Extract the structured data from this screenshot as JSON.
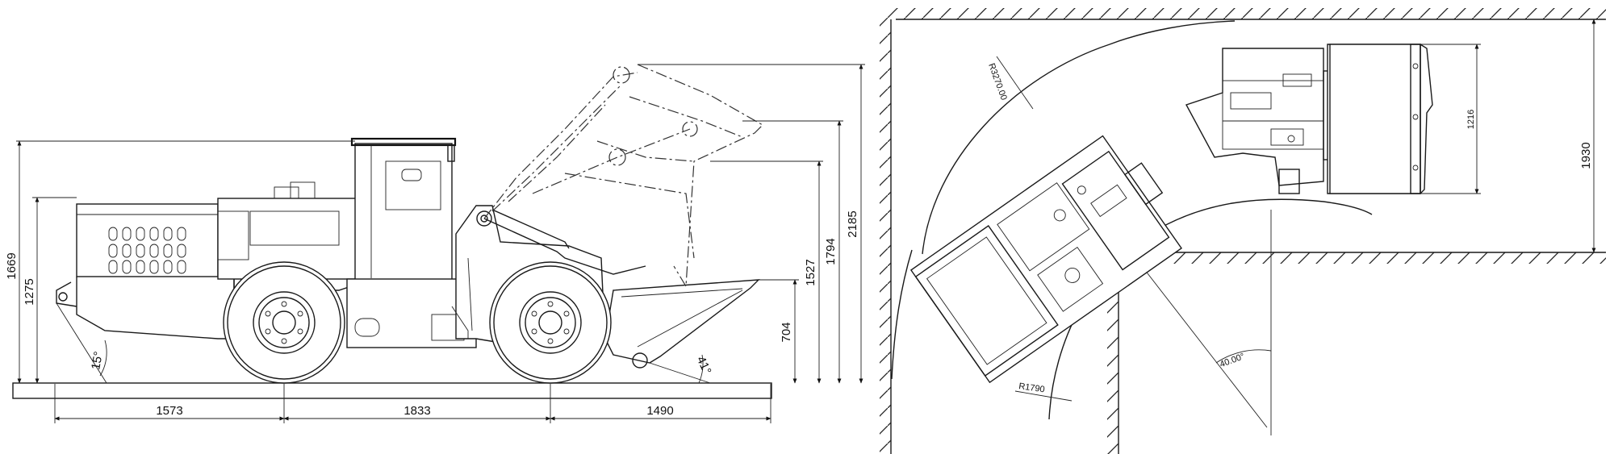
{
  "side_view": {
    "dimensions": {
      "height_overall": "1669",
      "height_body": "1275",
      "angle_rear": "15°",
      "length_rear": "1573",
      "wheelbase": "1833",
      "length_front": "1490",
      "dump_height": "704",
      "height_1527": "1527",
      "height_1794": "1794",
      "height_max": "2185",
      "angle_bucket": "41°"
    }
  },
  "plan_view": {
    "dimensions": {
      "outer_radius": "R3270.00",
      "inner_radius": "R1790",
      "articulation_angle": "40.00°",
      "bucket_width": "1216",
      "aisle_width": "1930"
    }
  }
}
